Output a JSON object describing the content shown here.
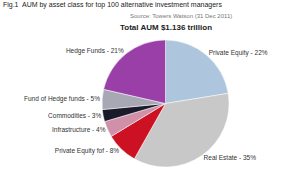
{
  "chart_data": {
    "type": "pie",
    "title": "Fig.1  AUM by asset class for top 100 alternative investment managers",
    "subtitle": "Total AUM $1.136 trillion",
    "annotations": [
      "Source: Towers Watson (31 Dec 2011)"
    ],
    "categories": [
      "Private Equity - 22%",
      "Real Estate - 35%",
      "Private Equity fof - 8%",
      "Infrastructure - 4%",
      "Commodities - 3%",
      "Fund of Hedge funds - 5%",
      "Hedge Funds - 21%"
    ],
    "values": [
      22,
      35,
      8,
      4,
      3,
      5,
      21
    ],
    "colors": [
      "#adc6de",
      "#c8c8c8",
      "#cc1122",
      "#d090a8",
      "#1a1a2a",
      "#a8a8b4",
      "#9b3fa8"
    ]
  }
}
